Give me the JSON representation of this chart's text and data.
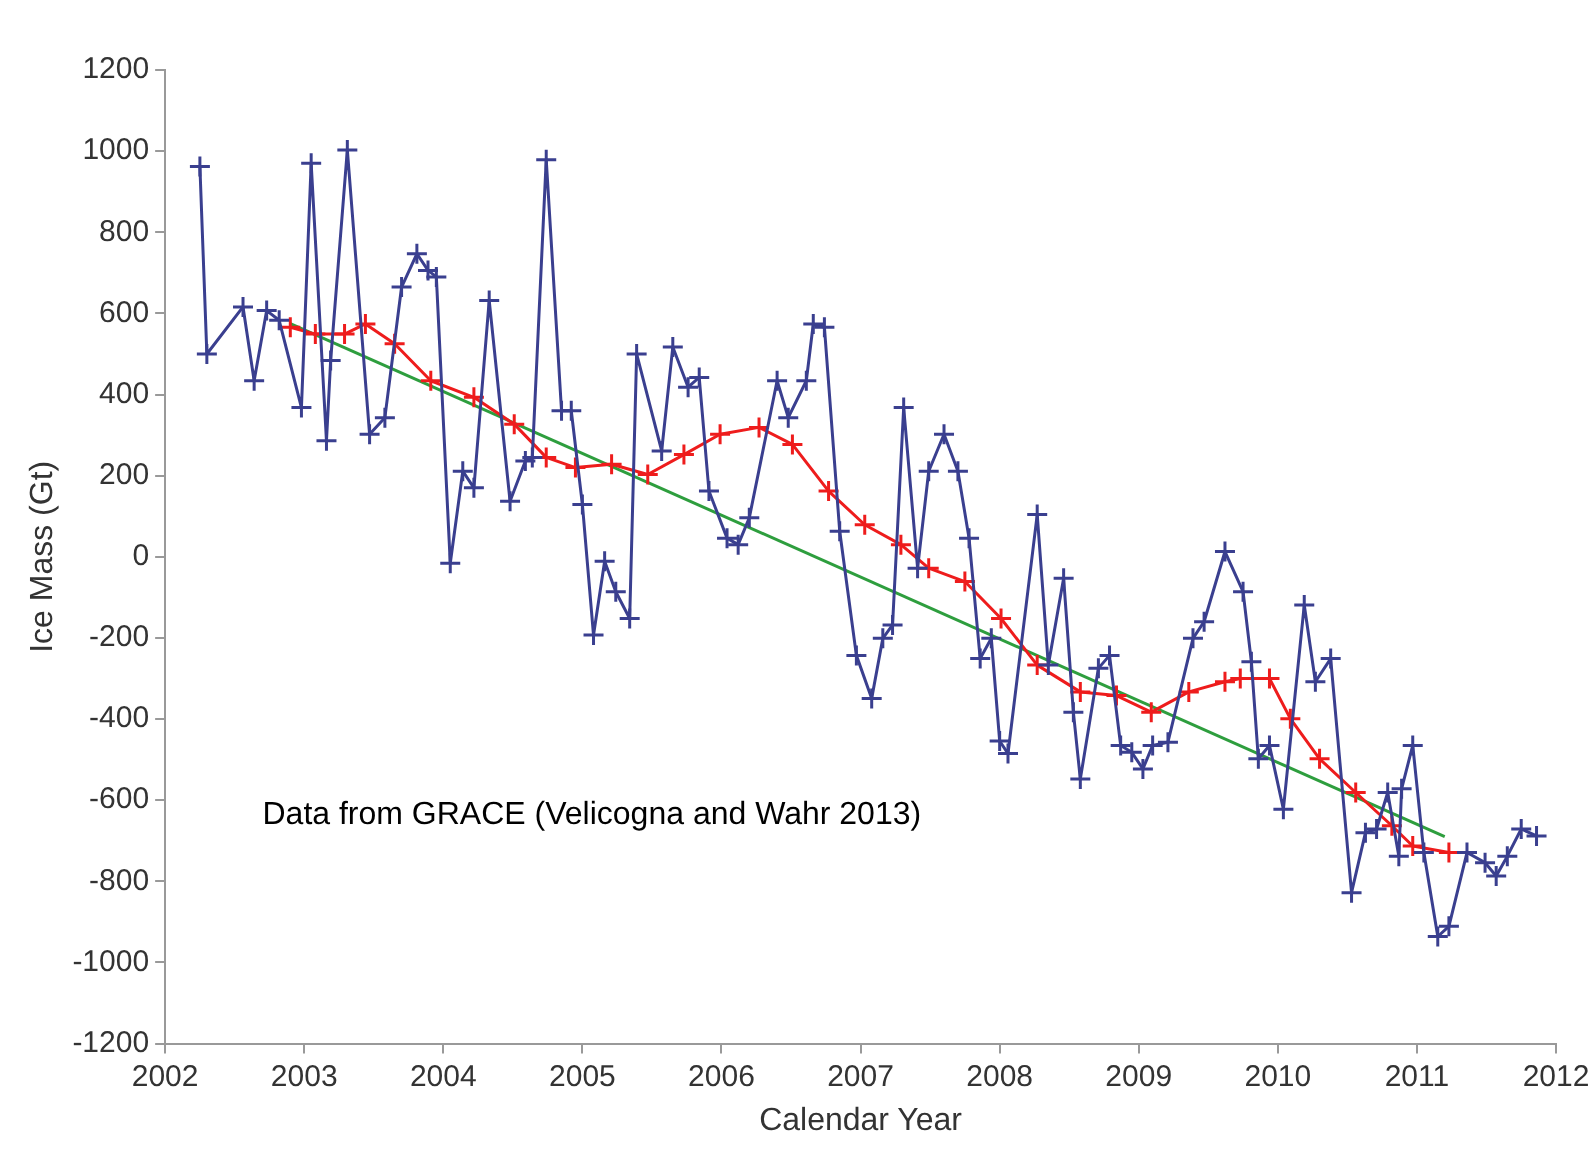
{
  "chart_data": {
    "type": "line",
    "xlabel": "Calendar Year",
    "ylabel": "Ice Mass (Gt)",
    "xlim": [
      2002,
      2012
    ],
    "xticks": [
      2002,
      2003,
      2004,
      2005,
      2006,
      2007,
      2008,
      2009,
      2010,
      2011,
      2012
    ],
    "ylim": [
      -1200,
      1200
    ],
    "yticks": [
      -1200,
      -1000,
      -800,
      -600,
      -400,
      -200,
      0,
      200,
      400,
      600,
      800,
      1000,
      1200
    ],
    "grid": false,
    "legend": false,
    "annotations": [
      "Data from GRACE (Velicogna and Wahr 2013)"
    ],
    "series": [
      {
        "color": "#3a3f8f",
        "marker": "cross",
        "line_style": "solid",
        "x": [
          2002.25,
          2002.3,
          2002.56,
          2002.64,
          2002.73,
          2002.82,
          2002.98,
          2003.05,
          2003.16,
          2003.19,
          2003.31,
          2003.47,
          2003.58,
          2003.7,
          2003.81,
          2003.89,
          2003.95,
          2004.05,
          2004.14,
          2004.22,
          2004.33,
          2004.48,
          2004.59,
          2004.64,
          2004.74,
          2004.85,
          2004.92,
          2005.0,
          2005.08,
          2005.16,
          2005.24,
          2005.34,
          2005.39,
          2005.57,
          2005.65,
          2005.76,
          2005.84,
          2005.91,
          2006.04,
          2006.12,
          2006.2,
          2006.4,
          2006.48,
          2006.61,
          2006.66,
          2006.74,
          2006.85,
          2006.97,
          2007.08,
          2007.16,
          2007.23,
          2007.31,
          2007.41,
          2007.49,
          2007.6,
          2007.7,
          2007.78,
          2007.86,
          2007.94,
          2008.0,
          2008.06,
          2008.27,
          2008.35,
          2008.46,
          2008.53,
          2008.58,
          2008.71,
          2008.79,
          2008.87,
          2008.95,
          2009.03,
          2009.1,
          2009.21,
          2009.39,
          2009.47,
          2009.62,
          2009.75,
          2009.81,
          2009.86,
          2009.94,
          2010.04,
          2010.19,
          2010.27,
          2010.38,
          2010.53,
          2010.63,
          2010.71,
          2010.79,
          2010.87,
          2010.89,
          2010.97,
          2011.05,
          2011.15,
          2011.23,
          2011.36,
          2011.49,
          2011.57,
          2011.65,
          2011.75,
          2011.86
        ],
        "values": [
          962,
          500,
          616,
          434,
          607,
          583,
          368,
          970,
          286,
          484,
          1003,
          302,
          343,
          665,
          747,
          706,
          690,
          -16,
          211,
          170,
          632,
          137,
          236,
          245,
          979,
          360,
          360,
          129,
          -193,
          -11,
          -86,
          -152,
          500,
          261,
          517,
          418,
          442,
          162,
          46,
          30,
          96,
          434,
          343,
          434,
          574,
          566,
          63,
          -243,
          -349,
          -201,
          -168,
          368,
          -28,
          211,
          302,
          211,
          46,
          -251,
          -201,
          -454,
          -485,
          104,
          -267,
          -53,
          -383,
          -548,
          -275,
          -243,
          -465,
          -482,
          -523,
          -465,
          -457,
          -201,
          -160,
          13,
          -86,
          -259,
          -498,
          -465,
          -622,
          -119,
          -308,
          -251,
          -828,
          -680,
          -671,
          -581,
          -738,
          -572,
          -465,
          -729,
          -936,
          -911,
          -729,
          -754,
          -787,
          -738,
          -671,
          -688
        ]
      },
      {
        "color": "#ee1c1c",
        "marker": "cross",
        "line_style": "solid",
        "x": [
          2002.9,
          2003.08,
          2003.29,
          2003.44,
          2003.65,
          2003.91,
          2004.22,
          2004.51,
          2004.74,
          2004.95,
          2005.21,
          2005.47,
          2005.73,
          2005.99,
          2006.27,
          2006.51,
          2006.77,
          2007.03,
          2007.29,
          2007.49,
          2007.75,
          2008.01,
          2008.27,
          2008.58,
          2008.84,
          2009.09,
          2009.36,
          2009.62,
          2009.73,
          2009.94,
          2010.09,
          2010.3,
          2010.56,
          2010.82,
          2010.97,
          2011.23
        ],
        "values": [
          566,
          549,
          549,
          574,
          525,
          434,
          393,
          327,
          245,
          220,
          228,
          203,
          252,
          302,
          319,
          277,
          162,
          79,
          30,
          -28,
          -61,
          -152,
          -267,
          -333,
          -342,
          -383,
          -333,
          -308,
          -300,
          -300,
          -399,
          -498,
          -581,
          -663,
          -713,
          -729
        ]
      },
      {
        "color": "#2e9e3e",
        "marker": "none",
        "line_style": "solid",
        "x": [
          2002.9,
          2011.2
        ],
        "values": [
          575,
          -690
        ]
      }
    ]
  }
}
